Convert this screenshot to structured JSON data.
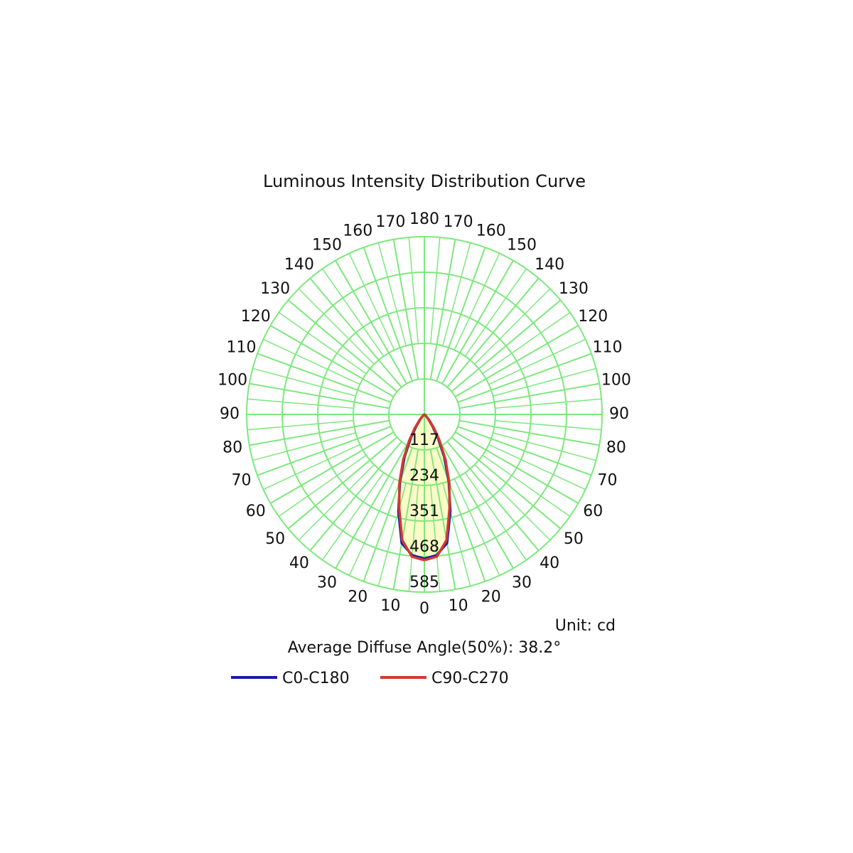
{
  "chart_data": {
    "type": "polar",
    "title": "Luminous Intensity Distribution Curve",
    "unit_label": "Unit: cd",
    "note": "Average Diffuse Angle(50%): 38.2°",
    "angles": [
      0,
      5,
      10,
      15,
      20,
      25,
      30,
      35,
      40,
      45,
      50,
      55,
      60,
      65,
      70,
      75,
      80,
      85,
      90
    ],
    "series": [
      {
        "name": "C0-C180",
        "color": "#1a1aa8",
        "values": [
          475,
          465,
          430,
          330,
          235,
          155,
          90,
          45,
          20,
          8,
          3,
          1,
          0,
          0,
          0,
          0,
          0,
          0,
          0
        ]
      },
      {
        "name": "C90-C270",
        "color": "#d23a2e",
        "values": [
          480,
          470,
          420,
          320,
          240,
          165,
          100,
          55,
          25,
          10,
          4,
          1,
          0,
          0,
          0,
          0,
          0,
          0,
          0
        ]
      }
    ],
    "rlim": [
      0,
      585
    ],
    "rticks": [
      117,
      234,
      351,
      468,
      585
    ],
    "angle_ticks": [
      0,
      10,
      20,
      30,
      40,
      50,
      60,
      70,
      80,
      90,
      100,
      110,
      120,
      130,
      140,
      150,
      160,
      170,
      180
    ],
    "grid_color": "#7de87d",
    "fill_color": "#fbfbc8"
  }
}
